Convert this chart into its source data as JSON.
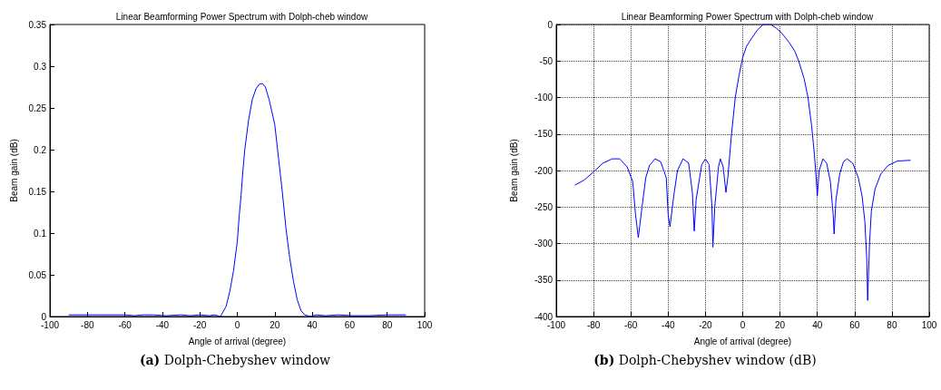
{
  "chart_data": [
    {
      "type": "line",
      "title": "Linear Beamforming Power Spectrum with Dolph-cheb window",
      "xlabel": "Angle of arrival (degree)",
      "ylabel": "Beam gain (dB)",
      "annotations": [
        "(a) Dolph-Chebyshev window"
      ],
      "xlim": [
        -100,
        100
      ],
      "xticks": [
        -100,
        -80,
        -60,
        -40,
        -20,
        0,
        20,
        40,
        60,
        80,
        100
      ],
      "ylim": [
        0,
        0.35
      ],
      "yticks": [
        0,
        0.05,
        0.1,
        0.15,
        0.2,
        0.25,
        0.3,
        0.35
      ],
      "grid": false,
      "line_style": "solid",
      "series": [
        {
          "color": "#0000ff",
          "x": [
            -90,
            -75,
            -60,
            -55,
            -50,
            -45,
            -38,
            -30,
            -25,
            -20,
            -15,
            -12,
            -9,
            -6,
            -4,
            -2,
            0,
            1,
            2,
            3,
            4,
            6,
            8,
            10,
            12,
            13.5,
            15,
            17,
            19,
            20,
            22,
            24,
            26,
            28,
            30,
            32,
            34,
            36,
            39,
            42,
            47,
            54,
            62,
            70,
            80,
            90
          ],
          "values": [
            0.002,
            0.002,
            0.002,
            0.001,
            0.002,
            0.002,
            0.001,
            0.002,
            0.001,
            0.002,
            0.001,
            0.002,
            0,
            0.012,
            0.03,
            0.055,
            0.09,
            0.12,
            0.145,
            0.175,
            0.2,
            0.235,
            0.26,
            0.273,
            0.279,
            0.279,
            0.275,
            0.26,
            0.24,
            0.23,
            0.19,
            0.15,
            0.105,
            0.07,
            0.042,
            0.02,
            0.007,
            0.002,
            0,
            0.002,
            0.001,
            0.002,
            0.001,
            0.001,
            0.002,
            0.002
          ]
        }
      ]
    },
    {
      "type": "line",
      "title": "Linear Beamforming Power Spectrum with Dolph-cheb window",
      "xlabel": "Angle of arrival (degree)",
      "ylabel": "Beam gain (dB)",
      "annotations": [
        "(b) Dolph-Chebyshev window (dB)"
      ],
      "xlim": [
        -100,
        100
      ],
      "xticks": [
        -100,
        -80,
        -60,
        -40,
        -20,
        0,
        20,
        40,
        60,
        80,
        100
      ],
      "ylim": [
        -400,
        0
      ],
      "yticks": [
        -400,
        -350,
        -300,
        -250,
        -200,
        -150,
        -100,
        -50,
        0
      ],
      "grid": true,
      "line_style": "solid",
      "series": [
        {
          "color": "#0000ff",
          "x": [
            -90,
            -85,
            -80,
            -75,
            -70,
            -66,
            -62,
            -59,
            -57.5,
            -56,
            -54,
            -52,
            -50,
            -47,
            -44,
            -41,
            -40,
            -39,
            -37,
            -35,
            -32,
            -29,
            -27,
            -26,
            -25,
            -22,
            -20,
            -18,
            -16.5,
            -16,
            -15,
            -13,
            -12,
            -10.5,
            -9,
            -8,
            -6,
            -4,
            -2,
            0,
            2,
            5,
            8,
            11,
            15,
            18,
            21,
            25,
            28,
            30,
            33,
            35,
            37,
            38.5,
            39.5,
            40,
            41,
            43,
            45,
            47,
            48.5,
            49,
            50,
            52,
            54,
            56,
            59,
            62,
            64,
            65.5,
            66.5,
            67,
            68,
            69,
            71,
            74,
            78,
            83,
            90
          ],
          "values": [
            -220,
            -213,
            -202,
            -190,
            -184,
            -184,
            -195,
            -215,
            -260,
            -292,
            -250,
            -210,
            -193,
            -184,
            -188,
            -210,
            -260,
            -277,
            -235,
            -200,
            -184,
            -190,
            -230,
            -283,
            -240,
            -192,
            -184,
            -192,
            -250,
            -305,
            -250,
            -195,
            -184,
            -195,
            -230,
            -210,
            -150,
            -100,
            -70,
            -45,
            -30,
            -18,
            -7,
            0,
            0,
            -5,
            -12,
            -25,
            -37,
            -50,
            -75,
            -100,
            -140,
            -180,
            -215,
            -235,
            -200,
            -184,
            -190,
            -215,
            -260,
            -287,
            -240,
            -205,
            -188,
            -184,
            -190,
            -210,
            -235,
            -270,
            -320,
            -378,
            -300,
            -255,
            -225,
            -205,
            -193,
            -187,
            -186
          ]
        }
      ]
    }
  ]
}
